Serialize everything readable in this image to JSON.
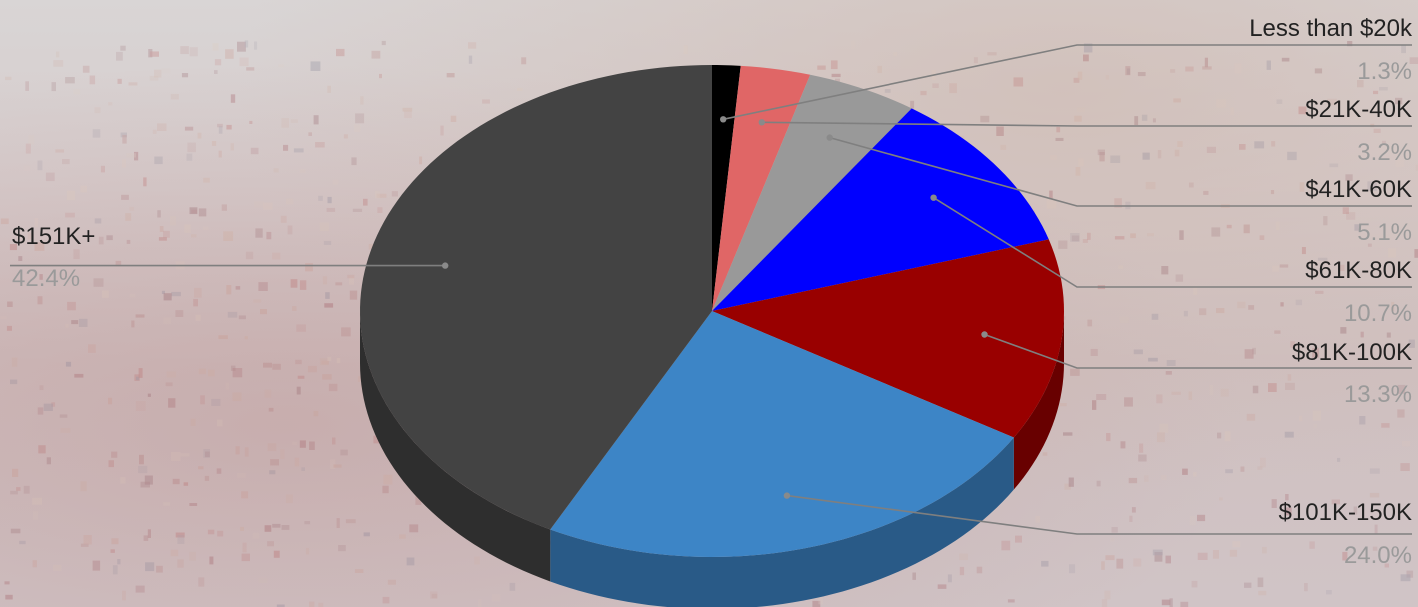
{
  "chart_data": {
    "type": "pie",
    "style": "3d",
    "labels": [
      "Less than $20k",
      "$21K-40K",
      "$41K-60K",
      "$61K-80K",
      "$81K-100K",
      "$101K-150K",
      "$151K+"
    ],
    "values": [
      1.3,
      3.2,
      5.1,
      10.7,
      13.3,
      24.0,
      42.4
    ],
    "value_labels": [
      "1.3%",
      "3.2%",
      "5.1%",
      "10.7%",
      "13.3%",
      "24.0%",
      "42.4%"
    ],
    "colors": [
      "#000000",
      "#e06666",
      "#999999",
      "#0000ff",
      "#990000",
      "#3d85c6",
      "#434343"
    ],
    "start": "12 o'clock",
    "direction": "clockwise",
    "title": "",
    "legend": "none"
  }
}
